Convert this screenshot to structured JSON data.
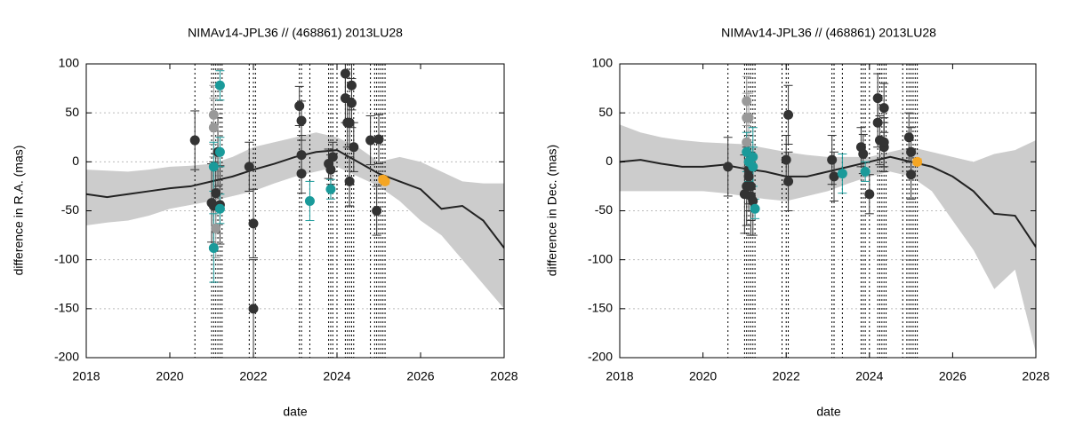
{
  "chart_data": [
    {
      "type": "line",
      "title": "NIMAv14-JPL36 // (468861) 2013LU28",
      "xlabel": "date",
      "ylabel": "difference in R.A. (mas)",
      "xlim": [
        2018,
        2028
      ],
      "xticks": [
        2018,
        2020,
        2022,
        2024,
        2026,
        2028
      ],
      "ylim": [
        -200,
        100
      ],
      "yticks": [
        -200,
        -150,
        -100,
        -50,
        0,
        50,
        100
      ],
      "grid": true,
      "x": [
        2018,
        2018.5,
        2019,
        2019.5,
        2020,
        2020.5,
        2021,
        2021.5,
        2022,
        2022.5,
        2023,
        2023.5,
        2024,
        2024.5,
        2025,
        2025.5,
        2026,
        2026.5,
        2027,
        2027.5,
        2028
      ],
      "series": [
        {
          "kind": "band",
          "color": "#cccccc",
          "lower": [
            -65,
            -62,
            -60,
            -55,
            -48,
            -44,
            -40,
            -35,
            -30,
            -22,
            -15,
            -10,
            -5,
            -15,
            -25,
            -40,
            -60,
            -75,
            -100,
            -125,
            -150
          ],
          "upper": [
            -8,
            -9,
            -10,
            -8,
            -5,
            -4,
            -2,
            5,
            15,
            20,
            25,
            30,
            25,
            15,
            0,
            5,
            0,
            -10,
            -20,
            -22,
            -22
          ]
        },
        {
          "kind": "line",
          "color": "#222222",
          "values": [
            -33,
            -36,
            -33,
            -30,
            -27,
            -25,
            -20,
            -15,
            -8,
            -2,
            5,
            10,
            12,
            0,
            -12,
            -20,
            -28,
            -48,
            -45,
            -60,
            -88
          ]
        }
      ],
      "points": [
        {
          "color": "#333333",
          "x": [
            2020.6,
            2021.0,
            2021.05,
            2021.1,
            2021.15,
            2021.2,
            2021.9,
            2022.0,
            2022.0,
            2023.1,
            2023.15,
            2023.15,
            2023.15,
            2023.8,
            2023.85,
            2023.9,
            2024.2,
            2024.2,
            2024.25,
            2024.3,
            2024.35,
            2024.35,
            2024.4,
            2024.3,
            2024.8,
            2024.95,
            2025.0
          ],
          "values": [
            22,
            -42,
            -45,
            -32,
            10,
            -44,
            -5,
            -63,
            -150,
            57,
            42,
            7,
            -12,
            -2,
            -8,
            5,
            90,
            65,
            40,
            40,
            78,
            60,
            15,
            -20,
            22,
            -50,
            23
          ],
          "errors": [
            30,
            40,
            45,
            40,
            35,
            40,
            25,
            35,
            50,
            20,
            20,
            20,
            20,
            15,
            15,
            15,
            25,
            25,
            25,
            25,
            25,
            25,
            25,
            25,
            25,
            25,
            25
          ]
        },
        {
          "color": "#999999",
          "x": [
            2021.05,
            2021.05,
            2021.1
          ],
          "values": [
            48,
            35,
            -68
          ],
          "errors": [
            30,
            30,
            30
          ]
        },
        {
          "color": "#1a9a9a",
          "x": [
            2021.05,
            2021.05,
            2021.2,
            2021.2,
            2021.2,
            2023.85,
            2023.35
          ],
          "values": [
            -5,
            -88,
            78,
            10,
            -48,
            -28,
            -40
          ],
          "errors": [
            25,
            35,
            15,
            15,
            15,
            10,
            20
          ]
        },
        {
          "color": "#f5a623",
          "x": [
            2025.1,
            2025.15
          ],
          "values": [
            -18,
            -20
          ],
          "errors": [
            3,
            3
          ]
        }
      ],
      "observation_dates": [
        2020.6,
        2021.0,
        2021.05,
        2021.1,
        2021.15,
        2021.2,
        2021.25,
        2021.9,
        2022.0,
        2022.05,
        2023.1,
        2023.15,
        2023.35,
        2023.8,
        2023.85,
        2023.9,
        2024.0,
        2024.2,
        2024.25,
        2024.3,
        2024.35,
        2024.4,
        2024.8,
        2024.9,
        2024.95,
        2025.0,
        2025.05,
        2025.1,
        2025.15
      ]
    },
    {
      "type": "line",
      "title": "NIMAv14-JPL36 // (468861) 2013LU28",
      "xlabel": "date",
      "ylabel": "difference in Dec. (mas)",
      "xlim": [
        2018,
        2028
      ],
      "xticks": [
        2018,
        2020,
        2022,
        2024,
        2026,
        2028
      ],
      "ylim": [
        -200,
        100
      ],
      "yticks": [
        -200,
        -150,
        -100,
        -50,
        0,
        50,
        100
      ],
      "grid": true,
      "x": [
        2018,
        2018.5,
        2019,
        2019.5,
        2020,
        2020.5,
        2021,
        2021.5,
        2022,
        2022.5,
        2023,
        2023.5,
        2024,
        2024.5,
        2025,
        2025.5,
        2026,
        2026.5,
        2027,
        2027.5,
        2028
      ],
      "series": [
        {
          "kind": "band",
          "color": "#cccccc",
          "lower": [
            -30,
            -30,
            -30,
            -30,
            -30,
            -32,
            -35,
            -38,
            -40,
            -35,
            -30,
            -22,
            -15,
            -10,
            -15,
            -30,
            -60,
            -90,
            -130,
            -110,
            -195
          ],
          "upper": [
            38,
            30,
            25,
            22,
            20,
            19,
            18,
            14,
            10,
            7,
            5,
            5,
            5,
            10,
            15,
            10,
            5,
            0,
            8,
            12,
            22
          ]
        },
        {
          "kind": "line",
          "color": "#222222",
          "values": [
            0,
            2,
            -2,
            -5,
            -5,
            -3,
            -7,
            -10,
            -15,
            -15,
            -10,
            -5,
            0,
            5,
            0,
            -5,
            -15,
            -30,
            -53,
            -55,
            -87
          ]
        }
      ],
      "points": [
        {
          "color": "#333333",
          "x": [
            2020.6,
            2021.0,
            2021.05,
            2021.1,
            2021.1,
            2021.15,
            2021.2,
            2021.15,
            2022.0,
            2022.05,
            2022.05,
            2023.1,
            2023.15,
            2023.8,
            2023.85,
            2024.0,
            2024.2,
            2024.2,
            2024.25,
            2024.35,
            2024.35,
            2024.35,
            2024.95,
            2025.0,
            2025.0
          ],
          "values": [
            -5,
            -33,
            -25,
            -15,
            -8,
            -35,
            -40,
            -25,
            2,
            48,
            -20,
            2,
            -15,
            15,
            8,
            -33,
            65,
            40,
            22,
            55,
            15,
            20,
            25,
            10,
            -13
          ],
          "errors": [
            30,
            40,
            40,
            35,
            35,
            40,
            35,
            35,
            25,
            30,
            30,
            25,
            25,
            20,
            20,
            20,
            25,
            25,
            25,
            25,
            25,
            25,
            25,
            25,
            25
          ]
        },
        {
          "color": "#999999",
          "x": [
            2021.05,
            2021.05,
            2021.05,
            2021.1
          ],
          "values": [
            62,
            45,
            20,
            45
          ],
          "errors": [
            25,
            25,
            25,
            25
          ]
        },
        {
          "color": "#1a9a9a",
          "x": [
            2021.05,
            2021.1,
            2021.2,
            2021.2,
            2021.25,
            2023.35,
            2023.9
          ],
          "values": [
            10,
            0,
            5,
            -5,
            -48,
            -12,
            -10
          ],
          "errors": [
            20,
            20,
            30,
            20,
            10,
            20,
            10
          ]
        },
        {
          "color": "#f5a623",
          "x": [
            2025.15
          ],
          "values": [
            0
          ],
          "errors": [
            3
          ]
        }
      ],
      "observation_dates": [
        2020.6,
        2021.0,
        2021.05,
        2021.1,
        2021.15,
        2021.2,
        2021.25,
        2021.9,
        2022.0,
        2022.05,
        2023.1,
        2023.15,
        2023.35,
        2023.8,
        2023.85,
        2023.9,
        2024.0,
        2024.2,
        2024.25,
        2024.3,
        2024.35,
        2024.4,
        2024.8,
        2024.9,
        2024.95,
        2025.0,
        2025.05,
        2025.1,
        2025.15
      ]
    }
  ]
}
